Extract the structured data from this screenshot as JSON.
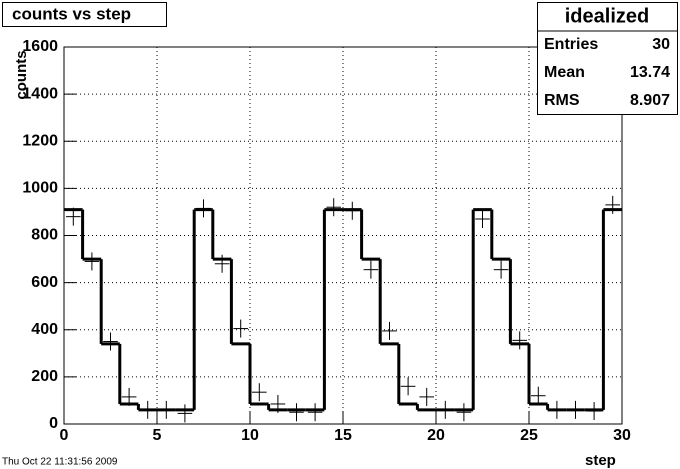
{
  "chart_data": {
    "type": "histogram",
    "title": "counts vs step",
    "xlabel": "step",
    "ylabel": "counts",
    "bins": [
      0,
      1,
      2,
      3,
      4,
      5,
      6,
      7,
      8,
      9,
      10,
      11,
      12,
      13,
      14,
      15,
      16,
      17,
      18,
      19,
      20,
      21,
      22,
      23,
      24,
      25,
      26,
      27,
      28,
      29,
      30
    ],
    "values": [
      910,
      700,
      340,
      85,
      60,
      60,
      60,
      910,
      700,
      340,
      85,
      60,
      60,
      60,
      910,
      910,
      700,
      340,
      85,
      60,
      60,
      60,
      910,
      700,
      340,
      85,
      60,
      60,
      60,
      910
    ],
    "markers": [
      880,
      690,
      350,
      115,
      60,
      60,
      45,
      915,
      680,
      405,
      135,
      85,
      50,
      50,
      920,
      905,
      655,
      395,
      160,
      115,
      60,
      50,
      870,
      655,
      355,
      120,
      60,
      60,
      55,
      930
    ],
    "color": "#000000",
    "xlim": [
      0,
      30
    ],
    "xticks": [
      0,
      5,
      10,
      15,
      20,
      25,
      30
    ],
    "ylim": [
      0,
      1600
    ],
    "yticks": [
      0,
      200,
      400,
      600,
      800,
      1000,
      1200,
      1400,
      1600
    ],
    "grid": true,
    "stats": {
      "title": "idealized",
      "rows": [
        {
          "label": "Entries",
          "value": 30
        },
        {
          "label": "Mean",
          "value": 13.74
        },
        {
          "label": "RMS",
          "value": 8.907
        }
      ]
    },
    "timestamp": "Thu Oct 22 11:31:56 2009"
  }
}
